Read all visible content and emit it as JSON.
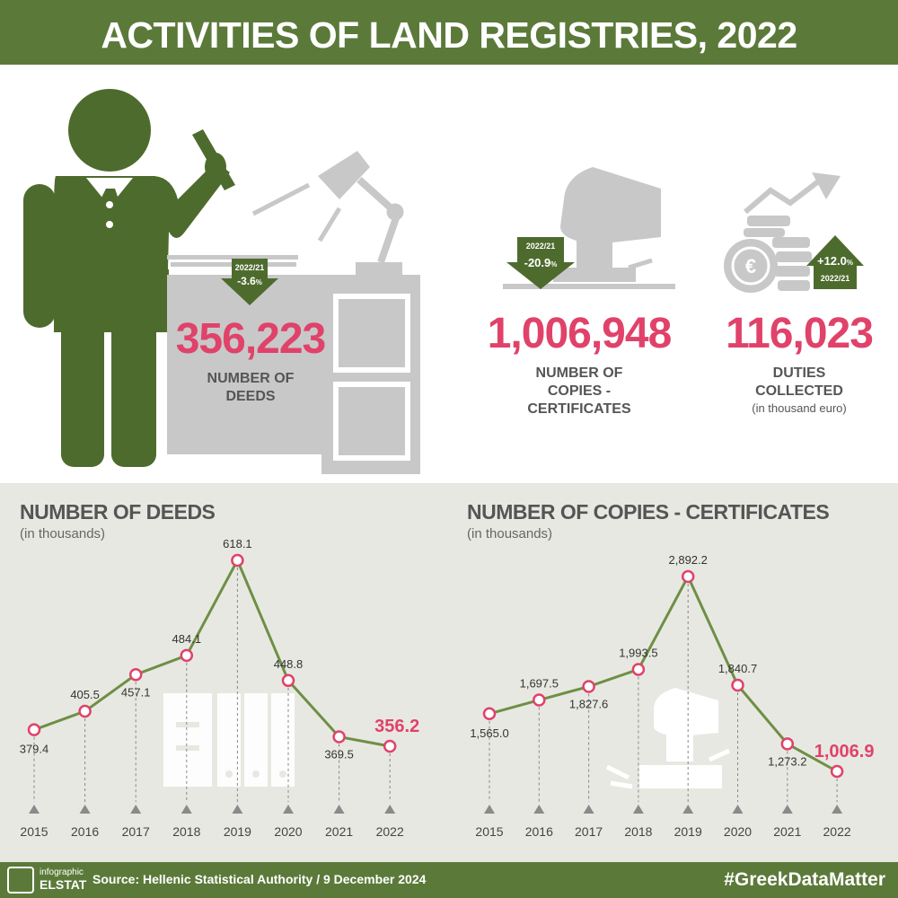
{
  "title": "ACTIVITIES OF LAND REGISTRIES, 2022",
  "kpis": {
    "deeds": {
      "value": "356,223",
      "label_line1": "NUMBER OF",
      "label_line2": "DEEDS",
      "badge_period": "2022/21",
      "badge_change": "-3.6",
      "badge_unit": "%",
      "direction": "down"
    },
    "copies": {
      "value": "1,006,948",
      "label_line1": "NUMBER OF",
      "label_line2": "COPIES -",
      "label_line3": "CERTIFICATES",
      "badge_period": "2022/21",
      "badge_change": "-20.9",
      "badge_unit": "%",
      "direction": "down"
    },
    "duties": {
      "value": "116,023",
      "label_line1": "DUTIES",
      "label_line2": "COLLECTED",
      "sublabel": "(in thousand euro)",
      "badge_period": "2022/21",
      "badge_change": "+12.0",
      "badge_unit": "%",
      "direction": "up"
    }
  },
  "colors": {
    "green": "#5b7a3a",
    "pink": "#e0426a",
    "gray": "#c8c8c8",
    "panel": "#e8e8e2"
  },
  "chart_data": [
    {
      "type": "line",
      "title": "NUMBER OF DEEDS",
      "subtitle": "(in thousands)",
      "x": [
        "2015",
        "2016",
        "2017",
        "2018",
        "2019",
        "2020",
        "2021",
        "2022"
      ],
      "series": [
        {
          "values": [
            379.4,
            405.5,
            457.1,
            484.1,
            618.1,
            448.8,
            369.5,
            356.2
          ]
        }
      ],
      "data_labels": [
        "379.4",
        "405.5",
        "457.1",
        "484.1",
        "618.1",
        "448.8",
        "369.5",
        "356.2"
      ],
      "highlight_last": true
    },
    {
      "type": "line",
      "title": "NUMBER OF COPIES - CERTIFICATES",
      "subtitle": "(in thousands)",
      "x": [
        "2015",
        "2016",
        "2017",
        "2018",
        "2019",
        "2020",
        "2021",
        "2022"
      ],
      "series": [
        {
          "values": [
            1565.0,
            1697.5,
            1827.6,
            1993.5,
            2892.2,
            1840.7,
            1273.2,
            1006.9
          ]
        }
      ],
      "data_labels": [
        "1,565.0",
        "1,697.5",
        "1,827.6",
        "1,993.5",
        "2,892.2",
        "1,840.7",
        "1,273.2",
        "1,006.9"
      ],
      "highlight_last": true
    }
  ],
  "footer": {
    "logo_small": "infographic",
    "logo_big": "ELSTAT",
    "source": "Source: Hellenic Statistical Authority / 9 December 2024",
    "hashtag": "#GreekDataMatter"
  }
}
